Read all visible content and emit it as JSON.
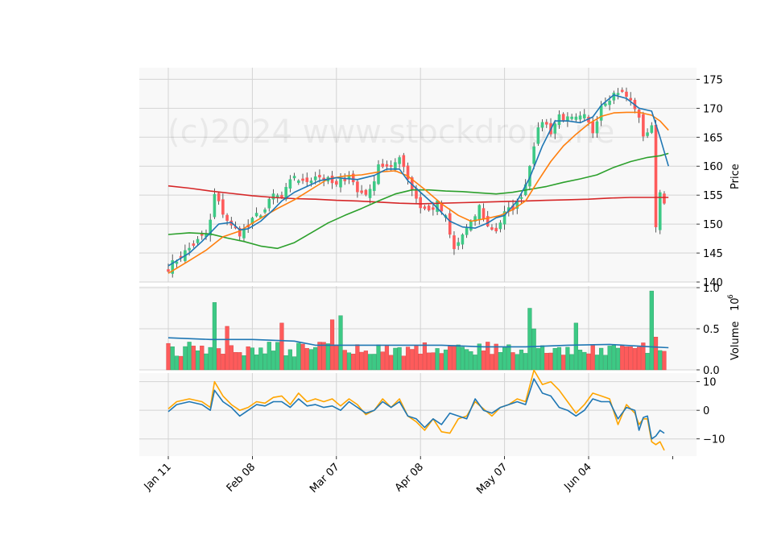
{
  "chart_data": {
    "type": "candlestick",
    "watermark": "(c)2024 www.stockdrops.ne",
    "colors": {
      "up": "#3dc985",
      "down": "#fe5b5b",
      "ma_fast": "#1f77b4",
      "ma_mid": "#ff7f0e",
      "ma_slow": "#2ca02c",
      "ma_long": "#d62728",
      "volume_ma": "#1f77b4",
      "osc_a": "#1f77b4",
      "osc_b": "#ffa500",
      "grid": "#d3d3d3",
      "background": "#f8f8f8"
    },
    "x_ticks": [
      "Jan 11",
      "Feb 08",
      "Mar 07",
      "Apr 08",
      "May 07",
      "Jun 04"
    ],
    "x_tick_index": [
      0,
      20,
      40,
      60,
      80,
      100
    ],
    "n_bars": 119,
    "price": {
      "ylabel": "Price",
      "ylim": [
        140,
        177
      ],
      "yticks": [
        140,
        145,
        150,
        155,
        160,
        165,
        170,
        175
      ],
      "anchors": [
        [
          0,
          142.5
        ],
        [
          3,
          144.5
        ],
        [
          6,
          146.5
        ],
        [
          9,
          148.2
        ],
        [
          10,
          150.5
        ],
        [
          11,
          155
        ],
        [
          13,
          152
        ],
        [
          15,
          149.5
        ],
        [
          17,
          148.5
        ],
        [
          19,
          149.5
        ],
        [
          21,
          151.5
        ],
        [
          23,
          152.5
        ],
        [
          25,
          155
        ],
        [
          27,
          154.5
        ],
        [
          30,
          158.5
        ],
        [
          32,
          157
        ],
        [
          35,
          158.5
        ],
        [
          38,
          157.5
        ],
        [
          40,
          156.5
        ],
        [
          43,
          158.8
        ],
        [
          45,
          155.5
        ],
        [
          48,
          155.5
        ],
        [
          50,
          160.5
        ],
        [
          53,
          159.3
        ],
        [
          55,
          162
        ],
        [
          58,
          156
        ],
        [
          60,
          153
        ],
        [
          62,
          152.2
        ],
        [
          64,
          153.5
        ],
        [
          66,
          151
        ],
        [
          67,
          148
        ],
        [
          68,
          145.5
        ],
        [
          70,
          148.2
        ],
        [
          72,
          150
        ],
        [
          74,
          153
        ],
        [
          76,
          149.5
        ],
        [
          78,
          149
        ],
        [
          80,
          151.8
        ],
        [
          83,
          153.5
        ],
        [
          85,
          157
        ],
        [
          87,
          164
        ],
        [
          89,
          168
        ],
        [
          91,
          166
        ],
        [
          93,
          168.8
        ],
        [
          95,
          168
        ],
        [
          97,
          168
        ],
        [
          99,
          168.4
        ],
        [
          101,
          166
        ],
        [
          103,
          170.8
        ],
        [
          105,
          172
        ],
        [
          107,
          173
        ],
        [
          109,
          172
        ],
        [
          111,
          170.2
        ],
        [
          113,
          165.5
        ],
        [
          115,
          166.5
        ],
        [
          116,
          150
        ],
        [
          117,
          155.5
        ],
        [
          119,
          153
        ]
      ],
      "ma_fast": [
        [
          0,
          142.8
        ],
        [
          5,
          145
        ],
        [
          8,
          147
        ],
        [
          12,
          150
        ],
        [
          15,
          150.3
        ],
        [
          17,
          149
        ],
        [
          19,
          149.2
        ],
        [
          22,
          150.5
        ],
        [
          25,
          152.5
        ],
        [
          27,
          154
        ],
        [
          30,
          155.5
        ],
        [
          33,
          156.5
        ],
        [
          36,
          157.5
        ],
        [
          40,
          158
        ],
        [
          45,
          157.7
        ],
        [
          49,
          158.4
        ],
        [
          52,
          159.5
        ],
        [
          55,
          159.5
        ],
        [
          57,
          157.5
        ],
        [
          60,
          155.5
        ],
        [
          63,
          153.5
        ],
        [
          65,
          152
        ],
        [
          67,
          150.5
        ],
        [
          70,
          149.5
        ],
        [
          73,
          149.3
        ],
        [
          76,
          150.2
        ],
        [
          78,
          151.1
        ],
        [
          80,
          151.5
        ],
        [
          83,
          154
        ],
        [
          86,
          158
        ],
        [
          89,
          163.5
        ],
        [
          92,
          167.8
        ],
        [
          95,
          167.8
        ],
        [
          98,
          167.5
        ],
        [
          101,
          168.5
        ],
        [
          103,
          170.5
        ],
        [
          106,
          172.3
        ],
        [
          109,
          171.7
        ],
        [
          112,
          170
        ],
        [
          115,
          169.5
        ],
        [
          117,
          165
        ],
        [
          119,
          160
        ]
      ],
      "ma_mid": [
        [
          0,
          141.5
        ],
        [
          5,
          143.7
        ],
        [
          9,
          145.5
        ],
        [
          13,
          147.8
        ],
        [
          17,
          148.8
        ],
        [
          21,
          150.6
        ],
        [
          26,
          152.7
        ],
        [
          30,
          154.2
        ],
        [
          34,
          156
        ],
        [
          38,
          157.8
        ],
        [
          42,
          158.3
        ],
        [
          46,
          158.5
        ],
        [
          50,
          159
        ],
        [
          54,
          159.2
        ],
        [
          57,
          158.3
        ],
        [
          61,
          156
        ],
        [
          65,
          153.5
        ],
        [
          69,
          151.5
        ],
        [
          72,
          150.5
        ],
        [
          76,
          151
        ],
        [
          79,
          151.5
        ],
        [
          82,
          152.5
        ],
        [
          85,
          154
        ],
        [
          88,
          157.5
        ],
        [
          91,
          160.8
        ],
        [
          94,
          163.5
        ],
        [
          97,
          165.5
        ],
        [
          100,
          167.3
        ],
        [
          103,
          168.6
        ],
        [
          106,
          169.2
        ],
        [
          109,
          169.3
        ],
        [
          112,
          169.3
        ],
        [
          115,
          168.8
        ],
        [
          117,
          167.8
        ],
        [
          119,
          166.2
        ]
      ],
      "ma_slow": [
        [
          0,
          148.2
        ],
        [
          5,
          148.5
        ],
        [
          10,
          148.3
        ],
        [
          14,
          147.6
        ],
        [
          18,
          147
        ],
        [
          22,
          146.2
        ],
        [
          26,
          145.8
        ],
        [
          30,
          146.8
        ],
        [
          34,
          148.5
        ],
        [
          38,
          150.2
        ],
        [
          42,
          151.5
        ],
        [
          46,
          152.7
        ],
        [
          50,
          154
        ],
        [
          54,
          155.2
        ],
        [
          58,
          155.9
        ],
        [
          62,
          155.9
        ],
        [
          66,
          155.7
        ],
        [
          70,
          155.6
        ],
        [
          74,
          155.4
        ],
        [
          78,
          155.2
        ],
        [
          82,
          155.5
        ],
        [
          86,
          156
        ],
        [
          90,
          156.5
        ],
        [
          94,
          157.2
        ],
        [
          98,
          157.8
        ],
        [
          102,
          158.5
        ],
        [
          106,
          159.8
        ],
        [
          110,
          160.8
        ],
        [
          114,
          161.5
        ],
        [
          117,
          161.8
        ],
        [
          119,
          162.2
        ]
      ],
      "ma_long": [
        [
          0,
          156.6
        ],
        [
          5,
          156.2
        ],
        [
          10,
          155.7
        ],
        [
          15,
          155.3
        ],
        [
          20,
          154.9
        ],
        [
          25,
          154.6
        ],
        [
          30,
          154.4
        ],
        [
          35,
          154.3
        ],
        [
          40,
          154.1
        ],
        [
          45,
          154
        ],
        [
          50,
          153.8
        ],
        [
          55,
          153.6
        ],
        [
          60,
          153.5
        ],
        [
          65,
          153.6
        ],
        [
          70,
          153.7
        ],
        [
          75,
          153.8
        ],
        [
          80,
          153.9
        ],
        [
          85,
          154
        ],
        [
          90,
          154.1
        ],
        [
          95,
          154.2
        ],
        [
          100,
          154.3
        ],
        [
          105,
          154.5
        ],
        [
          110,
          154.6
        ],
        [
          115,
          154.6
        ],
        [
          119,
          154.6
        ]
      ]
    },
    "volume": {
      "ylabel": "Volume",
      "exponent": "10",
      "exponent_power": "6",
      "ylim": [
        0,
        1.0
      ],
      "yticks": [
        "0.0",
        "0.5",
        "1.0"
      ],
      "spikes": [
        [
          11,
          0.82
        ],
        [
          14,
          0.53
        ],
        [
          27,
          0.57
        ],
        [
          39,
          0.61
        ],
        [
          41,
          0.66
        ],
        [
          86,
          0.75
        ],
        [
          87,
          0.5
        ],
        [
          97,
          0.57
        ],
        [
          115,
          0.96
        ],
        [
          116,
          0.4
        ]
      ],
      "ma": [
        [
          0,
          0.39
        ],
        [
          10,
          0.37
        ],
        [
          20,
          0.37
        ],
        [
          30,
          0.35
        ],
        [
          35,
          0.3
        ],
        [
          45,
          0.3
        ],
        [
          55,
          0.3
        ],
        [
          65,
          0.3
        ],
        [
          75,
          0.28
        ],
        [
          85,
          0.28
        ],
        [
          95,
          0.3
        ],
        [
          105,
          0.31
        ],
        [
          115,
          0.28
        ],
        [
          119,
          0.27
        ]
      ]
    },
    "oscillator": {
      "ylim": [
        -16,
        13
      ],
      "yticks": [
        "10",
        "0",
        "−10"
      ],
      "yticks_values": [
        10,
        0,
        -10
      ],
      "line_a": [
        [
          0,
          -0.5
        ],
        [
          2,
          2
        ],
        [
          5,
          3
        ],
        [
          8,
          2
        ],
        [
          10,
          0
        ],
        [
          11,
          7
        ],
        [
          13,
          3
        ],
        [
          15,
          1
        ],
        [
          17,
          -2
        ],
        [
          19,
          0
        ],
        [
          21,
          2
        ],
        [
          23,
          1.5
        ],
        [
          25,
          3
        ],
        [
          27,
          3
        ],
        [
          29,
          1
        ],
        [
          31,
          4
        ],
        [
          33,
          1.5
        ],
        [
          35,
          2
        ],
        [
          37,
          1
        ],
        [
          39,
          1.5
        ],
        [
          41,
          0
        ],
        [
          43,
          3
        ],
        [
          45,
          1
        ],
        [
          47,
          -1
        ],
        [
          49,
          0
        ],
        [
          51,
          3
        ],
        [
          53,
          1
        ],
        [
          55,
          3
        ],
        [
          57,
          -2
        ],
        [
          59,
          -3
        ],
        [
          61,
          -6
        ],
        [
          63,
          -3
        ],
        [
          65,
          -5
        ],
        [
          67,
          -1
        ],
        [
          69,
          -2
        ],
        [
          71,
          -3
        ],
        [
          73,
          4
        ],
        [
          75,
          0
        ],
        [
          77,
          -1
        ],
        [
          79,
          1
        ],
        [
          81,
          2
        ],
        [
          83,
          3
        ],
        [
          85,
          2
        ],
        [
          87,
          11
        ],
        [
          89,
          6
        ],
        [
          91,
          5
        ],
        [
          93,
          1
        ],
        [
          95,
          0
        ],
        [
          97,
          -2
        ],
        [
          99,
          0
        ],
        [
          101,
          4
        ],
        [
          103,
          3
        ],
        [
          105,
          3
        ],
        [
          107,
          -3
        ],
        [
          109,
          1
        ],
        [
          111,
          0
        ],
        [
          112,
          -7
        ],
        [
          113,
          -2.5
        ],
        [
          114,
          -2
        ],
        [
          115,
          -10
        ],
        [
          116,
          -9
        ],
        [
          117,
          -7
        ],
        [
          118,
          -8
        ]
      ],
      "line_b": [
        [
          0,
          0.5
        ],
        [
          2,
          3
        ],
        [
          5,
          4
        ],
        [
          8,
          3
        ],
        [
          10,
          1
        ],
        [
          11,
          10
        ],
        [
          13,
          5
        ],
        [
          15,
          2
        ],
        [
          17,
          0
        ],
        [
          19,
          1
        ],
        [
          21,
          3
        ],
        [
          23,
          2.5
        ],
        [
          25,
          4.5
        ],
        [
          27,
          5
        ],
        [
          29,
          2
        ],
        [
          31,
          6
        ],
        [
          33,
          3
        ],
        [
          35,
          4
        ],
        [
          37,
          3
        ],
        [
          39,
          4
        ],
        [
          41,
          1.5
        ],
        [
          43,
          4
        ],
        [
          45,
          2
        ],
        [
          47,
          -1.5
        ],
        [
          49,
          0
        ],
        [
          51,
          4
        ],
        [
          53,
          1
        ],
        [
          55,
          4
        ],
        [
          57,
          -2
        ],
        [
          59,
          -4
        ],
        [
          61,
          -7
        ],
        [
          63,
          -3
        ],
        [
          65,
          -7.5
        ],
        [
          67,
          -8
        ],
        [
          69,
          -3
        ],
        [
          71,
          -2
        ],
        [
          73,
          3
        ],
        [
          75,
          0.5
        ],
        [
          77,
          -2
        ],
        [
          79,
          1
        ],
        [
          81,
          2
        ],
        [
          83,
          4
        ],
        [
          85,
          3
        ],
        [
          87,
          14
        ],
        [
          89,
          9
        ],
        [
          91,
          10
        ],
        [
          93,
          7
        ],
        [
          95,
          3
        ],
        [
          97,
          -1
        ],
        [
          99,
          2
        ],
        [
          101,
          6
        ],
        [
          103,
          5
        ],
        [
          105,
          4
        ],
        [
          107,
          -5
        ],
        [
          109,
          2
        ],
        [
          111,
          -1
        ],
        [
          112,
          -5
        ],
        [
          113,
          -3
        ],
        [
          114,
          -3
        ],
        [
          115,
          -11
        ],
        [
          116,
          -12
        ],
        [
          117,
          -11
        ],
        [
          118,
          -14
        ]
      ]
    }
  }
}
